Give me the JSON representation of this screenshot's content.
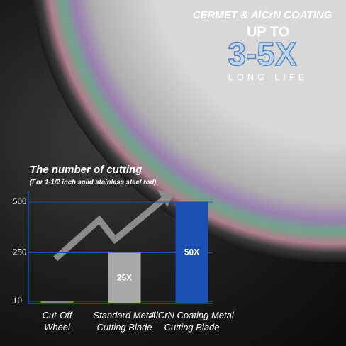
{
  "chart_data": {
    "type": "bar",
    "headline": [
      "CERMET & AlCrN COATING",
      "UP TO",
      "3-5X",
      "LONG LIFE"
    ],
    "title": "The number of cutting",
    "subtitle": "(For 1-1/2 inch solid stainless steel rod)",
    "categories": [
      "Cut-Off Wheel",
      "Standard Metal Cutting Blade",
      "AlCrN Coating Metal Cutting Blade"
    ],
    "values": [
      10,
      250,
      500
    ],
    "value_labels": [
      null,
      "25X",
      "50X"
    ],
    "colors": [
      "#8a8a8a",
      "#a9a9a9",
      "#1b4fb4"
    ],
    "ylim": [
      0,
      500
    ],
    "yticks": [
      10,
      250,
      500
    ],
    "grid": true
  }
}
